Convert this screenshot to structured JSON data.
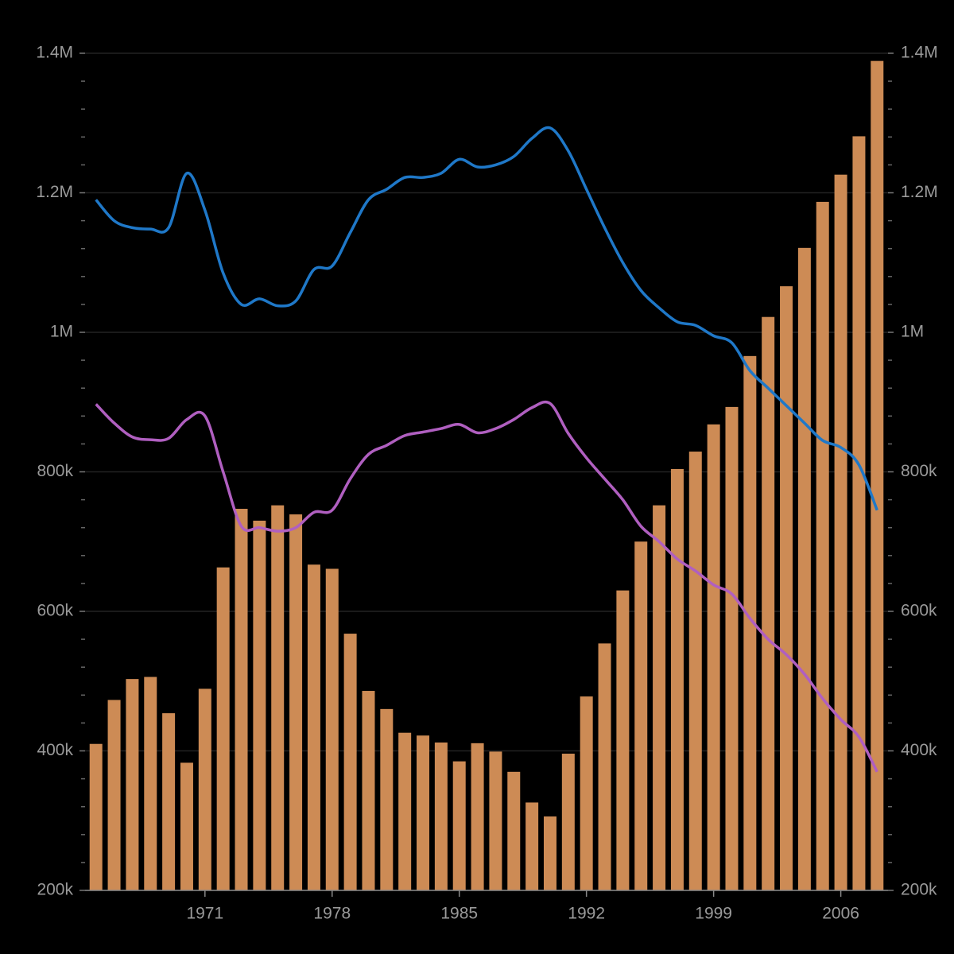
{
  "chart_data": {
    "type": "bar",
    "x": [
      1965,
      1966,
      1967,
      1968,
      1969,
      1970,
      1971,
      1972,
      1973,
      1974,
      1975,
      1976,
      1977,
      1978,
      1979,
      1980,
      1981,
      1982,
      1983,
      1984,
      1985,
      1986,
      1987,
      1988,
      1989,
      1990,
      1991,
      1992,
      1993,
      1994,
      1995,
      1996,
      1997,
      1998,
      1999,
      2000,
      2001,
      2002,
      2003,
      2004,
      2005,
      2006,
      2007,
      2008
    ],
    "values": [
      410000,
      473000,
      503000,
      506000,
      454000,
      383000,
      489000,
      663000,
      747000,
      730000,
      752000,
      739000,
      667000,
      661000,
      568000,
      486000,
      460000,
      426000,
      422000,
      412000,
      385000,
      411000,
      399000,
      370000,
      326000,
      306000,
      396000,
      478000,
      554000,
      630000,
      700000,
      752000,
      804000,
      829000,
      868000,
      893000,
      966000,
      1022000,
      1066000,
      1121000,
      1187000,
      1226000,
      1281000,
      1389000
    ],
    "color": "#cd8b55",
    "series": [
      {
        "type": "line",
        "color": "#1f78c8",
        "values": [
          1190000,
          1160000,
          1150000,
          1148000,
          1150000,
          1228000,
          1175000,
          1085000,
          1040000,
          1048000,
          1038000,
          1045000,
          1090000,
          1095000,
          1143000,
          1190000,
          1205000,
          1222000,
          1222000,
          1228000,
          1248000,
          1237000,
          1240000,
          1252000,
          1278000,
          1293000,
          1260000,
          1205000,
          1150000,
          1100000,
          1060000,
          1035000,
          1015000,
          1010000,
          995000,
          985000,
          945000,
          920000,
          895000,
          870000,
          845000,
          835000,
          810000,
          745000
        ]
      },
      {
        "type": "line",
        "color": "#b05fc0",
        "values": [
          897000,
          870000,
          850000,
          846000,
          848000,
          875000,
          880000,
          800000,
          722000,
          720000,
          715000,
          720000,
          742000,
          745000,
          790000,
          825000,
          838000,
          852000,
          857000,
          862000,
          868000,
          856000,
          862000,
          875000,
          892000,
          898000,
          855000,
          820000,
          790000,
          760000,
          722000,
          700000,
          675000,
          658000,
          638000,
          625000,
          590000,
          560000,
          538000,
          510000,
          475000,
          445000,
          420000,
          370000
        ]
      }
    ],
    "xlim": [
      1964.4,
      2008.6
    ],
    "xticks": [
      1971,
      1978,
      1985,
      1992,
      1999,
      2006
    ],
    "ylim": [
      200000,
      1400000
    ],
    "yticks": [
      {
        "value": 200000,
        "label": "200k"
      },
      {
        "value": 400000,
        "label": "400k"
      },
      {
        "value": 600000,
        "label": "600k"
      },
      {
        "value": 800000,
        "label": "800k"
      },
      {
        "value": 1000000,
        "label": "1M"
      },
      {
        "value": 1200000,
        "label": "1.2M"
      },
      {
        "value": 1400000,
        "label": "1.4M"
      }
    ],
    "y2lim": [
      200000,
      1400000
    ],
    "y2ticks": [
      {
        "value": 200000,
        "label": "200k"
      },
      {
        "value": 400000,
        "label": "400k"
      },
      {
        "value": 600000,
        "label": "600k"
      },
      {
        "value": 800000,
        "label": "800k"
      },
      {
        "value": 1000000,
        "label": "1M"
      },
      {
        "value": 1200000,
        "label": "1.2M"
      },
      {
        "value": 1400000,
        "label": "1.4M"
      }
    ],
    "minor_yticks": [
      240000,
      280000,
      320000,
      360000,
      440000,
      480000,
      520000,
      560000,
      640000,
      680000,
      720000,
      760000,
      840000,
      880000,
      920000,
      960000,
      1040000,
      1080000,
      1120000,
      1160000,
      1240000,
      1280000,
      1320000,
      1360000
    ],
    "grid": true
  }
}
